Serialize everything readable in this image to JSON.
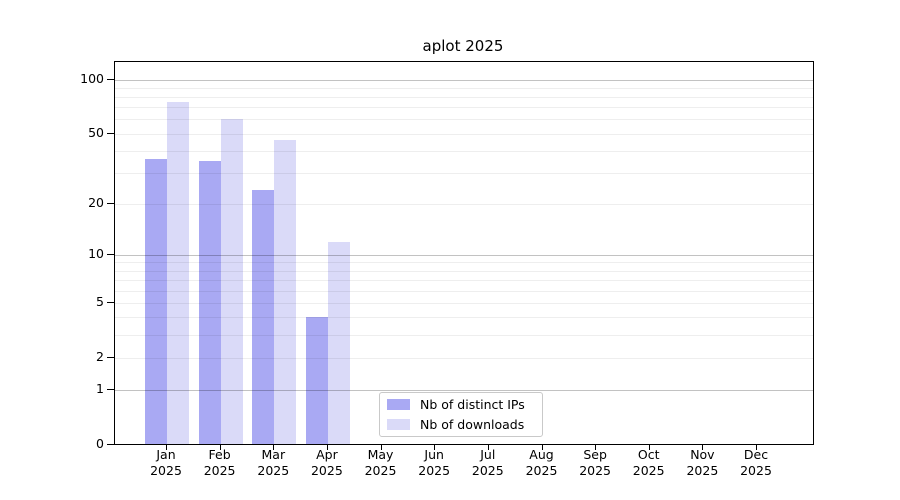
{
  "chart_data": {
    "type": "bar",
    "title": "aplot 2025",
    "categories": [
      "Jan",
      "Feb",
      "Mar",
      "Apr",
      "May",
      "Jun",
      "Jul",
      "Aug",
      "Sep",
      "Oct",
      "Nov",
      "Dec"
    ],
    "category_year": "2025",
    "series": [
      {
        "name": "Nb of distinct IPs",
        "color": "#a9a9f3",
        "values": [
          36,
          35,
          24,
          4,
          null,
          null,
          null,
          null,
          null,
          null,
          null,
          null
        ]
      },
      {
        "name": "Nb of downloads",
        "color": "#dadaf8",
        "values": [
          75,
          60,
          46,
          12,
          null,
          null,
          null,
          null,
          null,
          null,
          null,
          null
        ]
      }
    ],
    "y_axis": {
      "scale": "log1p",
      "ylim": [
        0,
        125
      ],
      "tick_values": [
        100,
        50,
        20,
        10,
        5,
        2,
        1,
        0
      ],
      "tick_labels": [
        "100",
        "50",
        "20",
        "10",
        "5",
        "2",
        "1",
        "0"
      ],
      "grid_values": [
        1,
        2,
        3,
        4,
        5,
        6,
        7,
        8,
        9,
        10,
        20,
        30,
        40,
        50,
        60,
        70,
        80,
        90,
        100
      ],
      "decade_grid_values": [
        1,
        10,
        100
      ]
    },
    "legend": {
      "position": "inside-bottom-center"
    },
    "grid": true
  }
}
